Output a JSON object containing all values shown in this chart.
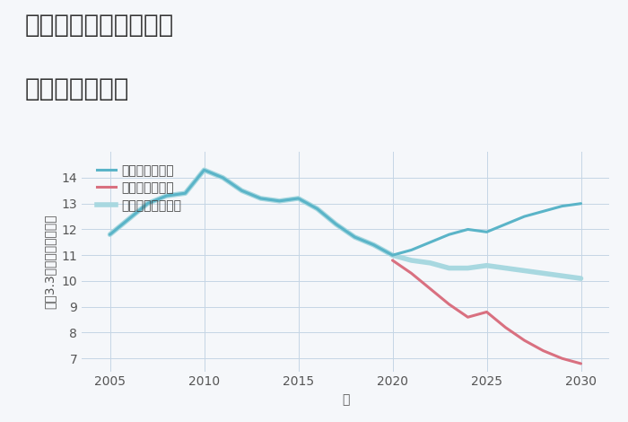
{
  "title_line1": "三重県鈴鹿市土師町の",
  "title_line2": "土地の価格推移",
  "xlabel": "年",
  "ylabel": "平（3.3㎡）単価（万円）",
  "bg_color": "#f5f7fa",
  "plot_bg_color": "#f5f7fa",
  "grid_color": "#c5d5e5",
  "xlim": [
    2003.5,
    2031.5
  ],
  "ylim": [
    6.5,
    15.0
  ],
  "xticks": [
    2005,
    2010,
    2015,
    2020,
    2025,
    2030
  ],
  "yticks": [
    7,
    8,
    9,
    10,
    11,
    12,
    13,
    14
  ],
  "good_scenario": {
    "x": [
      2005,
      2007,
      2008,
      2009,
      2010,
      2011,
      2012,
      2013,
      2014,
      2015,
      2016,
      2017,
      2018,
      2019,
      2020,
      2021,
      2022,
      2023,
      2024,
      2025,
      2026,
      2027,
      2028,
      2029,
      2030
    ],
    "y": [
      11.8,
      13.0,
      13.3,
      13.4,
      14.3,
      14.0,
      13.5,
      13.2,
      13.1,
      13.2,
      12.8,
      12.2,
      11.7,
      11.4,
      11.0,
      11.2,
      11.5,
      11.8,
      12.0,
      11.9,
      12.2,
      12.5,
      12.7,
      12.9,
      13.0
    ],
    "color": "#5ab4c8",
    "linewidth": 2.2,
    "label": "グッドシナリオ"
  },
  "bad_scenario": {
    "x": [
      2020,
      2021,
      2022,
      2023,
      2024,
      2025,
      2026,
      2027,
      2028,
      2029,
      2030
    ],
    "y": [
      10.8,
      10.3,
      9.7,
      9.1,
      8.6,
      8.8,
      8.2,
      7.7,
      7.3,
      7.0,
      6.8
    ],
    "color": "#d97080",
    "linewidth": 2.2,
    "label": "バッドシナリオ"
  },
  "normal_scenario": {
    "x": [
      2005,
      2007,
      2008,
      2009,
      2010,
      2011,
      2012,
      2013,
      2014,
      2015,
      2016,
      2017,
      2018,
      2019,
      2020,
      2021,
      2022,
      2023,
      2024,
      2025,
      2026,
      2027,
      2028,
      2029,
      2030
    ],
    "y": [
      11.8,
      13.0,
      13.3,
      13.4,
      14.3,
      14.0,
      13.5,
      13.2,
      13.1,
      13.2,
      12.8,
      12.2,
      11.7,
      11.4,
      11.0,
      10.8,
      10.7,
      10.5,
      10.5,
      10.6,
      10.5,
      10.4,
      10.3,
      10.2,
      10.1
    ],
    "color": "#a8d8e0",
    "linewidth": 4.0,
    "label": "ノーマルシナリオ"
  },
  "legend_fontsize": 10,
  "title_fontsize": 20,
  "axis_label_fontsize": 10,
  "tick_fontsize": 10
}
